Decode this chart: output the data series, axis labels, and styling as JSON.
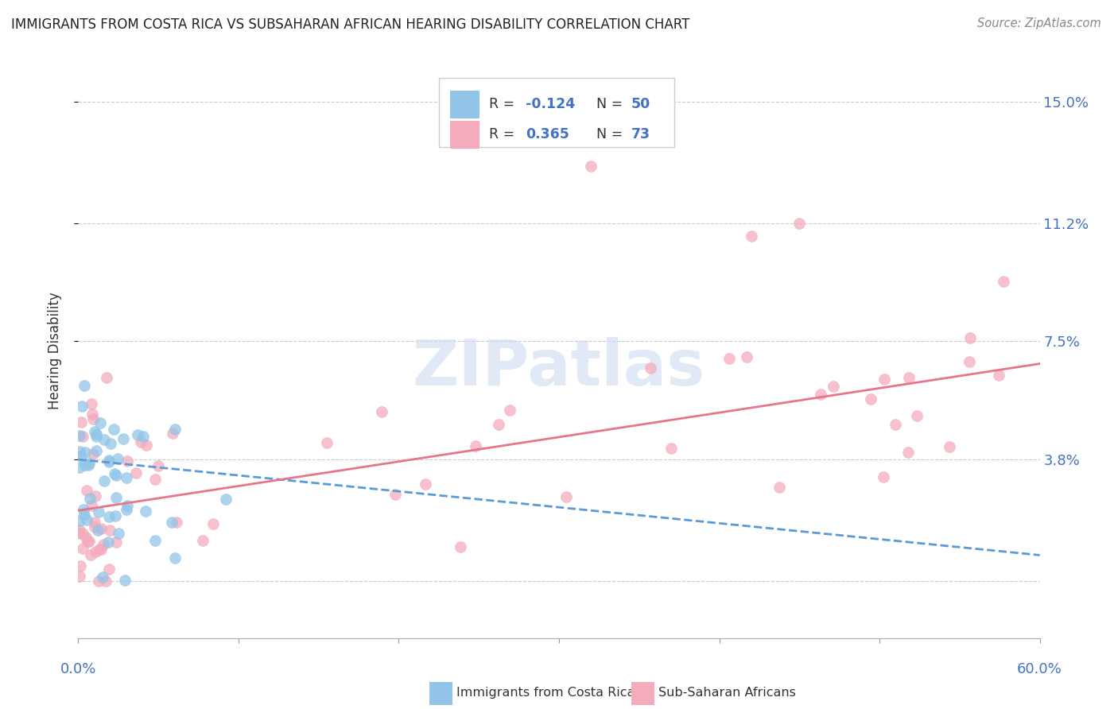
{
  "title": "IMMIGRANTS FROM COSTA RICA VS SUBSAHARAN AFRICAN HEARING DISABILITY CORRELATION CHART",
  "source": "Source: ZipAtlas.com",
  "ylabel": "Hearing Disability",
  "xlim": [
    0.0,
    0.6
  ],
  "ylim": [
    -0.018,
    0.162
  ],
  "ytick_vals": [
    0.038,
    0.075,
    0.112,
    0.15
  ],
  "ytick_labels": [
    "3.8%",
    "7.5%",
    "11.2%",
    "15.0%"
  ],
  "costa_rica_color": "#92C5E8",
  "subsaharan_color": "#F4ABBC",
  "trend_blue_color": "#5B9BD5",
  "trend_pink_color": "#E8768A",
  "cr_r": -0.124,
  "cr_n": 50,
  "ss_r": 0.365,
  "ss_n": 73,
  "cr_trend_x0": 0.0,
  "cr_trend_y0": 0.038,
  "cr_trend_x1": 0.6,
  "cr_trend_y1": 0.008,
  "ss_trend_x0": 0.0,
  "ss_trend_y0": 0.022,
  "ss_trend_x1": 0.6,
  "ss_trend_y1": 0.068,
  "watermark_color": "#C8D8EE",
  "grid_color": "#CCCCCC",
  "axis_label_color": "#4472C4",
  "text_color": "#333333",
  "source_color": "#888888"
}
